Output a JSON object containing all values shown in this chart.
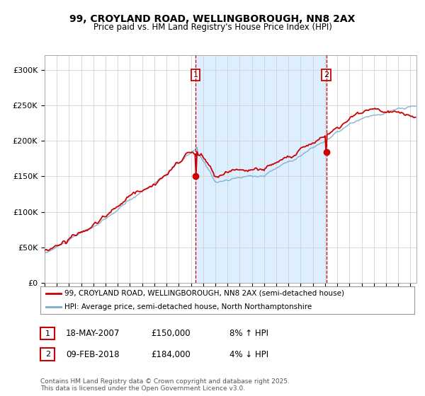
{
  "title": "99, CROYLAND ROAD, WELLINGBOROUGH, NN8 2AX",
  "subtitle": "Price paid vs. HM Land Registry's House Price Index (HPI)",
  "legend_line1": "99, CROYLAND ROAD, WELLINGBOROUGH, NN8 2AX (semi-detached house)",
  "legend_line2": "HPI: Average price, semi-detached house, North Northamptonshire",
  "footnote": "Contains HM Land Registry data © Crown copyright and database right 2025.\nThis data is licensed under the Open Government Licence v3.0.",
  "annotation1_date": "18-MAY-2007",
  "annotation1_price": "£150,000",
  "annotation1_hpi": "8% ↑ HPI",
  "annotation2_date": "09-FEB-2018",
  "annotation2_price": "£184,000",
  "annotation2_hpi": "4% ↓ HPI",
  "x_start": 1995.0,
  "x_end": 2025.5,
  "y_min": 0,
  "y_max": 320000,
  "vline1_x": 2007.38,
  "vline2_x": 2018.11,
  "dot1_x": 2007.38,
  "dot1_y": 150000,
  "dot2_x": 2018.11,
  "dot2_y": 184000,
  "red_color": "#cc0000",
  "blue_color": "#7aabcf",
  "shading_color": "#ddeeff",
  "background_color": "#ffffff",
  "grid_color": "#cccccc",
  "yticks": [
    0,
    50000,
    100000,
    150000,
    200000,
    250000,
    300000
  ],
  "ytick_labels": [
    "£0",
    "£50K",
    "£100K",
    "£150K",
    "£200K",
    "£250K",
    "£300K"
  ],
  "xticks": [
    1995,
    1996,
    1997,
    1998,
    1999,
    2000,
    2001,
    2002,
    2003,
    2004,
    2005,
    2006,
    2007,
    2008,
    2009,
    2010,
    2011,
    2012,
    2013,
    2014,
    2015,
    2016,
    2017,
    2018,
    2019,
    2020,
    2021,
    2022,
    2023,
    2024,
    2025
  ]
}
